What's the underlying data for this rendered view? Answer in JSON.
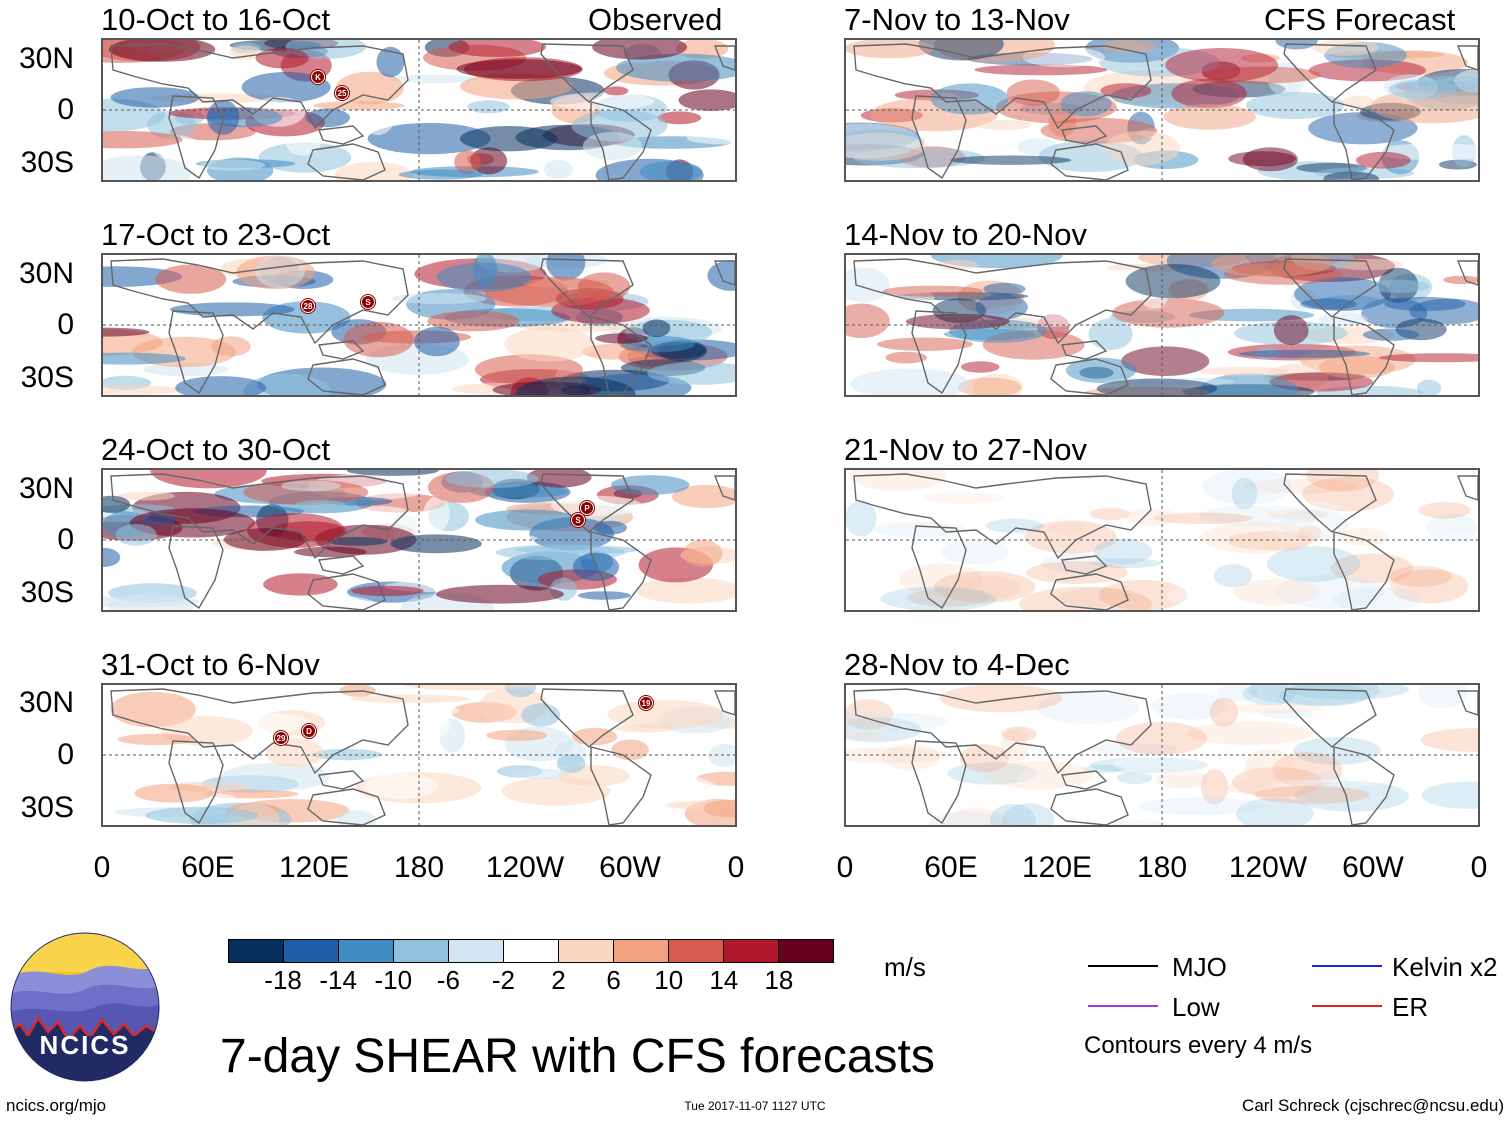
{
  "panels": [
    {
      "title": "10-Oct to 16-Oct",
      "tag": "Observed",
      "storms": [
        "K",
        "25"
      ]
    },
    {
      "title": "7-Nov to 13-Nov",
      "tag": "CFS Forecast",
      "storms": []
    },
    {
      "title": "17-Oct to 23-Oct",
      "tag": "",
      "storms": [
        "28",
        "S"
      ]
    },
    {
      "title": "14-Nov to 20-Nov",
      "tag": "",
      "storms": []
    },
    {
      "title": "24-Oct to 30-Oct",
      "tag": "",
      "storms": [
        "P",
        "S"
      ]
    },
    {
      "title": "21-Nov to 27-Nov",
      "tag": "",
      "storms": []
    },
    {
      "title": "31-Oct to 6-Nov",
      "tag": "",
      "storms": [
        "29",
        "D",
        "19"
      ]
    },
    {
      "title": "28-Nov to 4-Dec",
      "tag": "",
      "storms": []
    }
  ],
  "lat_labels": [
    "30N",
    "0",
    "30S"
  ],
  "lon_labels": [
    "0",
    "60E",
    "120E",
    "180",
    "120W",
    "60W",
    "0"
  ],
  "colorbar": {
    "labels": [
      "-18",
      "-14",
      "-10",
      "-6",
      "-2",
      "2",
      "6",
      "10",
      "14",
      "18"
    ],
    "colors": [
      "#08305f",
      "#1f5ea8",
      "#3f8dc2",
      "#8fc2de",
      "#d2e6f1",
      "#ffffff",
      "#fcd6c0",
      "#f2a27f",
      "#d65d4e",
      "#b2182b",
      "#67001f"
    ],
    "unit": "m/s"
  },
  "legend": {
    "items": [
      {
        "label": "MJO",
        "color": "#000000"
      },
      {
        "label": "Kelvin x2",
        "color": "#1c2ad6"
      },
      {
        "label": "Low",
        "color": "#9b3ee0"
      },
      {
        "label": "ER",
        "color": "#e0231c"
      }
    ],
    "contours_note": "Contours every 4 m/s"
  },
  "logo_text": "NCICS",
  "main_title": "7-day SHEAR with CFS forecasts",
  "footer": {
    "left": "ncics.org/mjo",
    "center": "Tue 2017-11-07 1127 UTC",
    "right": "Carl Schreck (cjschrec@ncsu.edu)"
  }
}
